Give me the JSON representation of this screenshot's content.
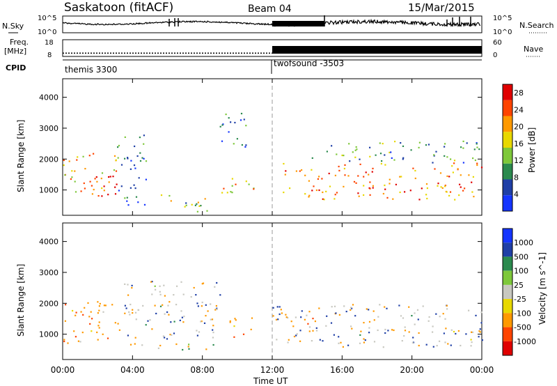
{
  "header": {
    "station": "Saskatoon (fitACF)",
    "beam": "Beam 04",
    "date": "15/Mar/2015"
  },
  "strips": {
    "nsky_label": "N.Sky",
    "nsearch_label": "N.Search",
    "noise_ticks_left": [
      "10^5",
      "10^0"
    ],
    "noise_ticks_right": [
      "10^5",
      "10^0"
    ],
    "freq_label_1": "Freq.",
    "freq_label_2": "[MHz]",
    "freq_ticks": [
      "18",
      "8"
    ],
    "nave_label": "Nave",
    "nave_ticks": [
      "60",
      "0"
    ],
    "cpid_label": "CPID",
    "cpid_segments": [
      {
        "name": "themis 3300",
        "start_hour": 0
      },
      {
        "name": "twofsound -3503",
        "start_hour": 12
      }
    ],
    "frequency_mhz": [
      {
        "from_hour": 0,
        "to_hour": 12,
        "value": 10
      },
      {
        "from_hour": 12,
        "to_hour": 24,
        "value": 10
      }
    ]
  },
  "chart_data": [
    {
      "type": "heatmap",
      "name": "power",
      "ylabel": "Slant Range [km]",
      "y_ticks": [
        "1000",
        "2000",
        "3000",
        "4000"
      ],
      "ylim": [
        180,
        4600
      ],
      "x_ticks": [
        "00:00",
        "04:00",
        "08:00",
        "12:00",
        "16:00",
        "20:00",
        "00:00"
      ],
      "xlim_hours": [
        0,
        24
      ],
      "colorbar_label": "Power [dB]",
      "colorbar_ticks": [
        "4",
        "8",
        "12",
        "16",
        "20",
        "24",
        "28"
      ],
      "colorbar_range": [
        0,
        30
      ],
      "colors": [
        "#1535ff",
        "#1f3fa6",
        "#2b8a4e",
        "#7ec83a",
        "#e8d800",
        "#ff9900",
        "#ff4400",
        "#e00000"
      ],
      "regions": [
        {
          "hours": [
            0.0,
            3.2
          ],
          "range_km": [
            800,
            2200
          ],
          "mean_db": 20
        },
        {
          "hours": [
            1.5,
            3.0
          ],
          "range_km": [
            800,
            1600
          ],
          "mean_db": 27
        },
        {
          "hours": [
            3.0,
            4.8
          ],
          "range_km": [
            400,
            2800
          ],
          "mean_db": 8
        },
        {
          "hours": [
            5.5,
            8.5
          ],
          "range_km": [
            300,
            900
          ],
          "mean_db": 14
        },
        {
          "hours": [
            8.5,
            10.5
          ],
          "range_km": [
            2400,
            3500
          ],
          "mean_db": 6
        },
        {
          "hours": [
            9.0,
            11.0
          ],
          "range_km": [
            800,
            1500
          ],
          "mean_db": 18
        },
        {
          "hours": [
            12.5,
            24.0
          ],
          "range_km": [
            700,
            1900
          ],
          "mean_db": 22
        },
        {
          "hours": [
            14.0,
            24.0
          ],
          "range_km": [
            1900,
            2600
          ],
          "mean_db": 10
        }
      ]
    },
    {
      "type": "heatmap",
      "name": "velocity",
      "ylabel": "Slant Range [km]",
      "y_ticks": [
        "1000",
        "2000",
        "3000",
        "4000"
      ],
      "ylim": [
        180,
        4600
      ],
      "x_ticks": [
        "00:00",
        "04:00",
        "08:00",
        "12:00",
        "16:00",
        "20:00",
        "00:00"
      ],
      "xlim_hours": [
        0,
        24
      ],
      "xlabel": "Time UT",
      "colorbar_label": "Velocity [m s^-1]",
      "colorbar_ticks": [
        "1000",
        "500",
        "100",
        "25",
        "-25",
        "-100",
        "-500",
        "-1000"
      ],
      "colors": [
        "#1535ff",
        "#1f3fa6",
        "#2b8a4e",
        "#7ec83a",
        "#c8c8c0",
        "#e8d800",
        "#ff9900",
        "#ff4400",
        "#e00000"
      ],
      "regions": [
        {
          "hours": [
            0.0,
            3.5
          ],
          "range_km": [
            700,
            2100
          ],
          "mean_ms": -300
        },
        {
          "hours": [
            3.5,
            9.0
          ],
          "range_km": [
            500,
            2800
          ],
          "mean_ms": 0
        },
        {
          "hours": [
            9.5,
            11.0
          ],
          "range_km": [
            900,
            1600
          ],
          "mean_ms": -300
        },
        {
          "hours": [
            12.0,
            24.0
          ],
          "range_km": [
            600,
            2000
          ],
          "mean_ms": 0
        },
        {
          "hours": [
            13.0,
            14.5
          ],
          "range_km": [
            1100,
            1800
          ],
          "mean_ms": -400
        }
      ]
    }
  ]
}
